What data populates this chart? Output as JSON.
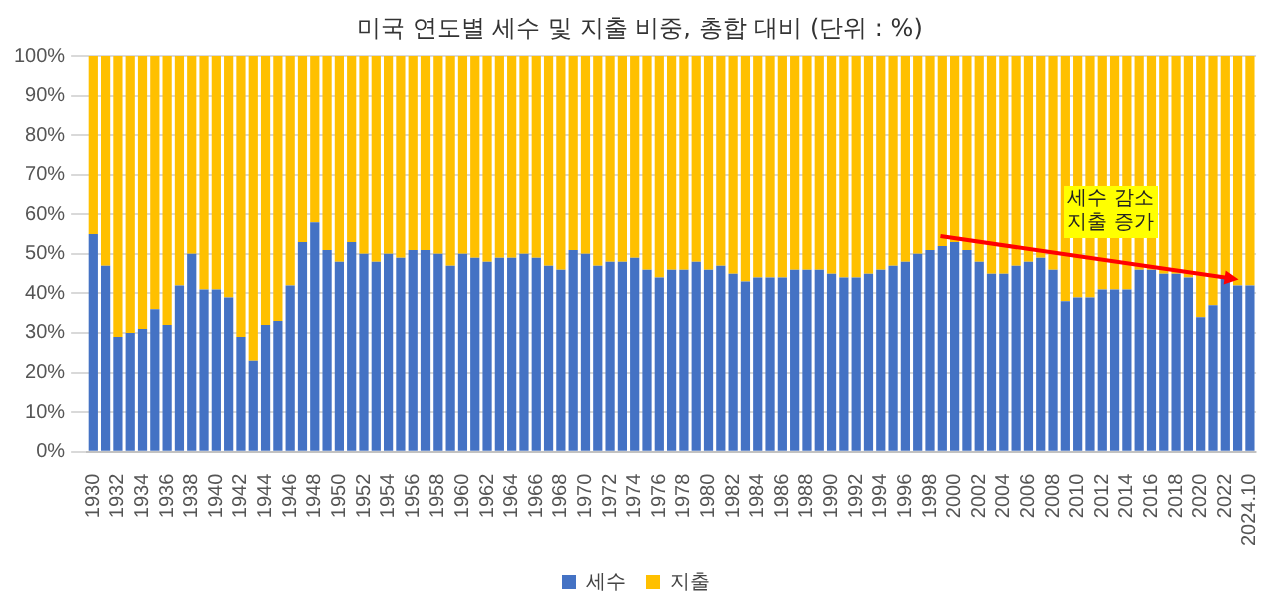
{
  "chart_data": {
    "type": "bar",
    "stacked": true,
    "title": "미국 연도별 세수 및 지출 비중, 총합 대비  (단위 : %)",
    "categories": [
      "1930",
      null,
      "1932",
      null,
      "1934",
      null,
      "1936",
      null,
      "1938",
      null,
      "1940",
      null,
      "1942",
      null,
      "1944",
      null,
      "1946",
      null,
      "1948",
      null,
      "1950",
      null,
      "1952",
      null,
      "1954",
      null,
      "1956",
      null,
      "1958",
      null,
      "1960",
      null,
      "1962",
      null,
      "1964",
      null,
      "1966",
      null,
      "1968",
      null,
      "1970",
      null,
      "1972",
      null,
      "1974",
      null,
      "1976",
      null,
      "1978",
      null,
      "1980",
      null,
      "1982",
      null,
      "1984",
      null,
      "1986",
      null,
      "1988",
      null,
      "1990",
      null,
      "1992",
      null,
      "1994",
      null,
      "1996",
      null,
      "1998",
      null,
      "2000",
      null,
      "2002",
      null,
      "2004",
      null,
      "2006",
      null,
      "2008",
      null,
      "2010",
      null,
      "2012",
      null,
      "2014",
      null,
      "2016",
      null,
      "2018",
      null,
      "2020",
      null,
      "2022",
      null,
      "2024.10"
    ],
    "series": [
      {
        "name": "세수",
        "color": "#4472c4",
        "values": [
          55,
          47,
          29,
          30,
          31,
          36,
          32,
          42,
          50,
          41,
          41,
          39,
          29,
          23,
          32,
          33,
          42,
          53,
          58,
          51,
          48,
          53,
          50,
          48,
          50,
          49,
          51,
          51,
          50,
          47,
          50,
          49,
          48,
          49,
          49,
          50,
          49,
          47,
          46,
          51,
          50,
          47,
          48,
          48,
          49,
          46,
          44,
          46,
          46,
          48,
          46,
          47,
          45,
          43,
          44,
          44,
          44,
          46,
          46,
          46,
          45,
          44,
          44,
          45,
          46,
          47,
          48,
          50,
          51,
          52,
          53,
          51,
          48,
          45,
          45,
          47,
          48,
          49,
          46,
          38,
          39,
          39,
          41,
          41,
          41,
          46,
          46,
          45,
          45,
          44,
          34,
          37,
          44,
          42,
          42
        ]
      },
      {
        "name": "지출",
        "color": "#ffc000",
        "values": [
          45,
          53,
          71,
          70,
          69,
          64,
          68,
          58,
          50,
          59,
          59,
          61,
          71,
          77,
          68,
          67,
          58,
          47,
          42,
          49,
          52,
          47,
          50,
          52,
          50,
          51,
          49,
          49,
          50,
          53,
          50,
          51,
          52,
          51,
          51,
          50,
          51,
          53,
          54,
          49,
          50,
          53,
          52,
          52,
          51,
          54,
          56,
          54,
          54,
          52,
          54,
          53,
          55,
          57,
          56,
          56,
          56,
          54,
          54,
          54,
          55,
          56,
          56,
          55,
          54,
          53,
          52,
          50,
          49,
          48,
          47,
          49,
          52,
          55,
          55,
          53,
          52,
          51,
          54,
          62,
          61,
          61,
          59,
          59,
          59,
          54,
          54,
          55,
          55,
          56,
          66,
          63,
          56,
          58,
          58
        ]
      }
    ],
    "ylim": [
      0,
      100
    ],
    "yticks": [
      {
        "value": 0,
        "label": "0%"
      },
      {
        "value": 10,
        "label": "10%"
      },
      {
        "value": 20,
        "label": "20%"
      },
      {
        "value": 30,
        "label": "30%"
      },
      {
        "value": 40,
        "label": "40%"
      },
      {
        "value": 50,
        "label": "50%"
      },
      {
        "value": 60,
        "label": "60%"
      },
      {
        "value": 70,
        "label": "70%"
      },
      {
        "value": 80,
        "label": "80%"
      },
      {
        "value": 90,
        "label": "90%"
      },
      {
        "value": 100,
        "label": "100%"
      }
    ],
    "grid": "y",
    "legend": "bottom",
    "annotations": [
      "세수 감소\n지출 증가"
    ]
  }
}
